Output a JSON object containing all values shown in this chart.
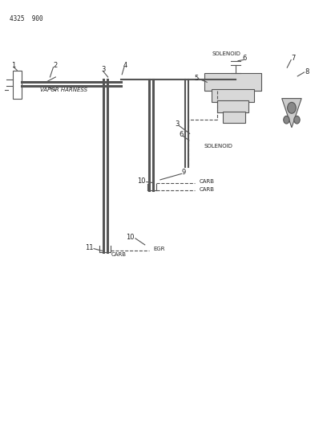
{
  "title": "4325  900",
  "background_color": "#ffffff",
  "line_color": "#555555",
  "text_color": "#222222",
  "fig_width": 4.08,
  "fig_height": 5.33,
  "dpi": 100,
  "labels": {
    "title": "4325  900",
    "vapor_harness": "VAPOR HARNESS",
    "solenoid_top": "SOLENOID",
    "solenoid_bot": "SOLENOID",
    "carb1": "CARB",
    "carb2": "CARB",
    "carb3": "CARB",
    "egr": "EGR"
  },
  "lw_thin": 0.8,
  "lw_main": 1.5,
  "lw_thick": 2.2,
  "fs_small": 5.5,
  "fs_num": 6.0
}
